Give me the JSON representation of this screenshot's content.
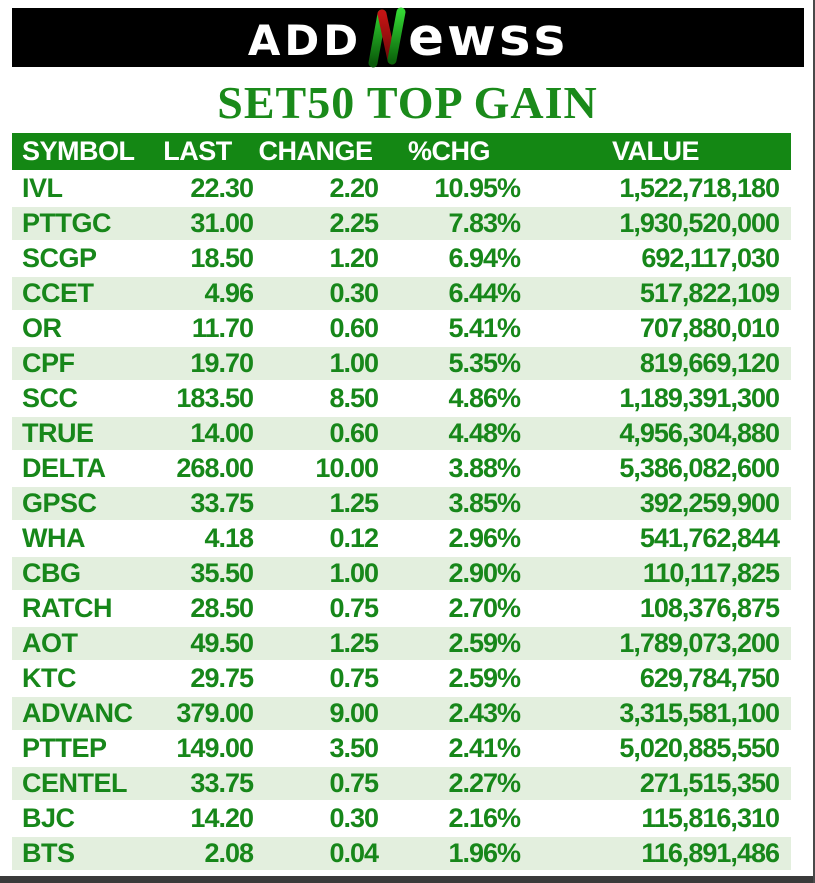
{
  "logo": {
    "prefix": "ADD",
    "suffix": "ewss",
    "icon": "stock-zigzag-letter-N"
  },
  "title": "SET50 TOP GAIN",
  "colors": {
    "header_green": "#148714",
    "row_alt_green": "#e3efde",
    "text_green": "#17871a",
    "title_green": "#1a8a1a",
    "banner_black": "#000000",
    "logo_green_bright": "#2ecc2e",
    "logo_green_dark": "#0a5a0a",
    "logo_red": "#b31312",
    "bottom_bar_gray": "#3a3a3a"
  },
  "chart_data": {
    "type": "table",
    "title": "SET50 TOP GAIN",
    "columns": [
      "SYMBOL",
      "LAST",
      "CHANGE",
      "%CHG",
      "VALUE"
    ],
    "rows": [
      [
        "IVL",
        "22.30",
        "2.20",
        "10.95%",
        "1,522,718,180"
      ],
      [
        "PTTGC",
        "31.00",
        "2.25",
        "7.83%",
        "1,930,520,000"
      ],
      [
        "SCGP",
        "18.50",
        "1.20",
        "6.94%",
        "692,117,030"
      ],
      [
        "CCET",
        "4.96",
        "0.30",
        "6.44%",
        "517,822,109"
      ],
      [
        "OR",
        "11.70",
        "0.60",
        "5.41%",
        "707,880,010"
      ],
      [
        "CPF",
        "19.70",
        "1.00",
        "5.35%",
        "819,669,120"
      ],
      [
        "SCC",
        "183.50",
        "8.50",
        "4.86%",
        "1,189,391,300"
      ],
      [
        "TRUE",
        "14.00",
        "0.60",
        "4.48%",
        "4,956,304,880"
      ],
      [
        "DELTA",
        "268.00",
        "10.00",
        "3.88%",
        "5,386,082,600"
      ],
      [
        "GPSC",
        "33.75",
        "1.25",
        "3.85%",
        "392,259,900"
      ],
      [
        "WHA",
        "4.18",
        "0.12",
        "2.96%",
        "541,762,844"
      ],
      [
        "CBG",
        "35.50",
        "1.00",
        "2.90%",
        "110,117,825"
      ],
      [
        "RATCH",
        "28.50",
        "0.75",
        "2.70%",
        "108,376,875"
      ],
      [
        "AOT",
        "49.50",
        "1.25",
        "2.59%",
        "1,789,073,200"
      ],
      [
        "KTC",
        "29.75",
        "0.75",
        "2.59%",
        "629,784,750"
      ],
      [
        "ADVANC",
        "379.00",
        "9.00",
        "2.43%",
        "3,315,581,100"
      ],
      [
        "PTTEP",
        "149.00",
        "3.50",
        "2.41%",
        "5,020,885,550"
      ],
      [
        "CENTEL",
        "33.75",
        "0.75",
        "2.27%",
        "271,515,350"
      ],
      [
        "BJC",
        "14.20",
        "0.30",
        "2.16%",
        "115,816,310"
      ],
      [
        "BTS",
        "2.08",
        "0.04",
        "1.96%",
        "116,891,486"
      ]
    ]
  }
}
